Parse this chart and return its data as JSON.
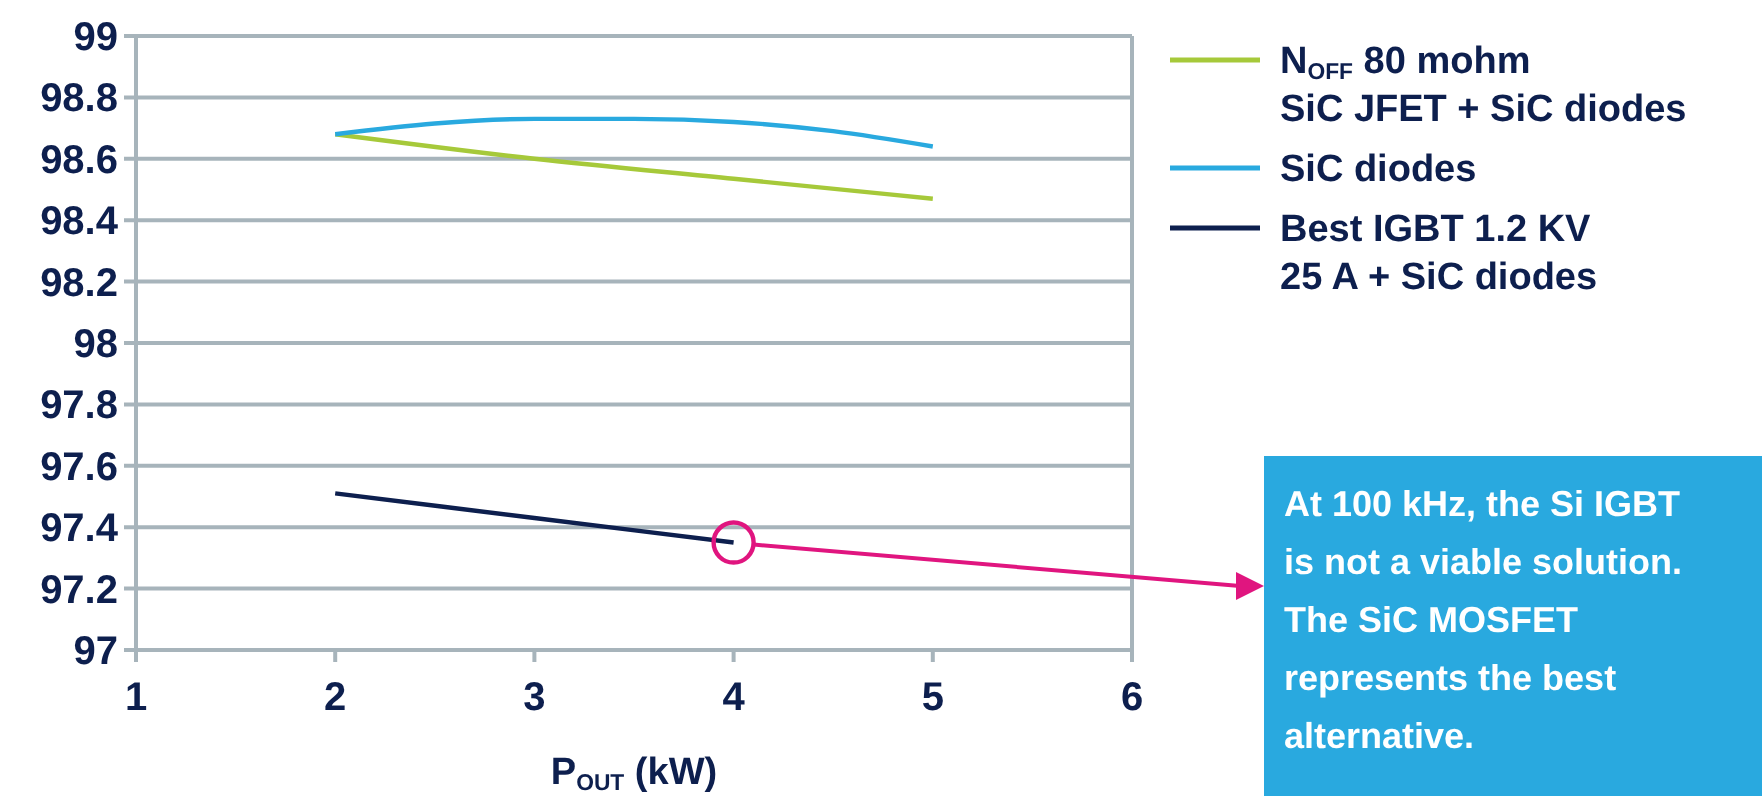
{
  "chart_data": {
    "type": "line",
    "xlabel": "P$_{OUT}$ (kW)",
    "xlim": [
      1,
      6
    ],
    "xticks": [
      1,
      2,
      3,
      4,
      5,
      6
    ],
    "ylim": [
      97,
      99
    ],
    "yticks": [
      97,
      97.2,
      97.4,
      97.6,
      97.8,
      98,
      98.2,
      98.4,
      98.6,
      98.8,
      99
    ],
    "grid": "y",
    "legend": "right",
    "marker": "none",
    "line_style": "solid",
    "series": [
      {
        "name": "N$_{OFF}$ 80 mohm\nSiC JFET + SiC diodes",
        "color": "#a6c93a",
        "x": [
          2,
          3,
          4,
          5
        ],
        "values": [
          98.68,
          98.6,
          98.535,
          98.47
        ]
      },
      {
        "name": "SiC diodes",
        "color": "#29a9df",
        "x": [
          2,
          2.5,
          3,
          3.5,
          4,
          4.5,
          5
        ],
        "values": [
          98.68,
          98.715,
          98.73,
          98.73,
          98.72,
          98.69,
          98.64
        ]
      },
      {
        "name": "Best IGBT 1.2 KV\n25 A + SiC diodes",
        "color": "#0d1f4e",
        "x": [
          2,
          3,
          4
        ],
        "values": [
          97.51,
          97.43,
          97.35
        ]
      }
    ],
    "annotations": [
      "At 100 kHz, the Si IGBT\nis not a viable solution.\nThe SiC MOSFET\nrepresents the best\nalternative."
    ]
  }
}
